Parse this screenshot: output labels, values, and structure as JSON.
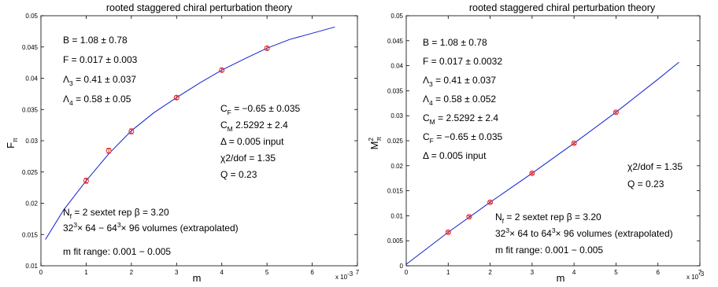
{
  "chart_data": [
    {
      "type": "scatter",
      "title": "rooted staggered chiral perturbation theory",
      "xlabel": "m",
      "ylabel": "F",
      "ylabel_sub": "π",
      "x_multiplier": "x 10",
      "x_multiplier_exp": "-3",
      "xlim": [
        0,
        7
      ],
      "ylim": [
        0.01,
        0.05
      ],
      "xticks": [
        "0",
        "1",
        "2",
        "3",
        "4",
        "5",
        "6",
        "7"
      ],
      "yticks": [
        "0.01",
        "0.015",
        "0.02",
        "0.025",
        "0.03",
        "0.035",
        "0.04",
        "0.045",
        "0.05"
      ],
      "points": {
        "x": [
          1,
          1.5,
          2,
          3,
          4,
          5
        ],
        "y": [
          0.0236,
          0.0284,
          0.0315,
          0.0369,
          0.0413,
          0.0448
        ],
        "err": [
          0.0004,
          0.0004,
          0.0004,
          0.0003,
          0.0003,
          0.0003
        ],
        "color": "#e0262c"
      },
      "fit_curve": {
        "color": "#1020d0",
        "x": [
          0.1,
          0.5,
          1,
          1.5,
          2,
          2.5,
          3,
          3.5,
          4,
          4.5,
          5,
          5.5,
          6,
          6.5
        ],
        "y": [
          0.0142,
          0.0189,
          0.0236,
          0.0279,
          0.0316,
          0.0345,
          0.0369,
          0.0392,
          0.0413,
          0.0431,
          0.0448,
          0.0462,
          0.0472,
          0.0482
        ]
      },
      "annotations": {
        "params": [
          {
            "sym": "B",
            "sub": "",
            "text": " =  1.08 ± 0.78"
          },
          {
            "sym": "F",
            "sub": "",
            "text": "   =  0.017 ± 0.003"
          },
          {
            "sym": "Λ",
            "sub": "3",
            "text": " =  0.41 ± 0.037"
          },
          {
            "sym": "Λ",
            "sub": "4",
            "text": " =  0.58 ± 0.05"
          }
        ],
        "right_params": [
          {
            "sym": "C",
            "sub": "F",
            "text": " =  −0.65 ± 0.035"
          },
          {
            "sym": "C",
            "sub": "M",
            "text": "  2.5292 ± 2.4"
          },
          {
            "sym": "Δ",
            "sub": "",
            "text": "     =  0.005  input"
          },
          {
            "sym": "χ",
            "sub": "",
            "text": "2/dof = 1.35"
          },
          {
            "sym": "Q",
            "sub": "",
            "text": " = 0.23"
          }
        ],
        "setup": [
          {
            "pre": "N",
            "sub": "f",
            "text": " = 2    sextet rep     β = 3.20"
          },
          {
            "pre": "32",
            "sup1": "3",
            "mid": "× 64  −  64",
            "sup2": "3",
            "post": "× 96  volumes (extrapolated)"
          },
          {
            "text": "m fit range:  0.001 − 0.005"
          }
        ]
      }
    },
    {
      "type": "scatter",
      "title": "rooted staggered chiral perturbation theory",
      "xlabel": "m",
      "ylabel": "M",
      "ylabel_sub": "π",
      "ylabel_sup": "2",
      "x_multiplier": "x 10",
      "x_multiplier_exp": "-3",
      "xlim": [
        0,
        7
      ],
      "ylim": [
        0,
        0.05
      ],
      "xticks": [
        "0",
        "1",
        "2",
        "3",
        "4",
        "5",
        "6",
        "7"
      ],
      "yticks": [
        "0",
        "0.005",
        "0.01",
        "0.015",
        "0.02",
        "0.025",
        "0.03",
        "0.035",
        "0.04",
        "0.045",
        "0.05"
      ],
      "points": {
        "x": [
          1,
          1.5,
          2,
          3,
          4,
          5
        ],
        "y": [
          0.0067,
          0.0098,
          0.0127,
          0.0185,
          0.0245,
          0.0307
        ],
        "err": [
          0.0002,
          0.0002,
          0.0002,
          0.0002,
          0.0002,
          0.0002
        ],
        "color": "#e0262c"
      },
      "fit_curve": {
        "color": "#1020d0",
        "x": [
          0,
          1,
          2,
          3,
          4,
          5,
          6,
          6.5
        ],
        "y": [
          0.0003,
          0.0067,
          0.0127,
          0.0185,
          0.0245,
          0.0307,
          0.0373,
          0.0407
        ]
      },
      "annotations": {
        "params": [
          {
            "sym": "B",
            "sub": "",
            "text": "  =  1.08 ± 0.78"
          },
          {
            "sym": "F",
            "sub": "",
            "text": "  =  0.017 ± 0.0032"
          },
          {
            "sym": "Λ",
            "sub": "3",
            "text": " =  0.41 ± 0.037"
          },
          {
            "sym": "Λ",
            "sub": "4",
            "text": " =  0.58 ± 0.052"
          },
          {
            "sym": "C",
            "sub": "M",
            "text": "  =  2.5292 ± 2.4"
          },
          {
            "sym": "C",
            "sub": "F",
            "text": "  =  −0.65 ± 0.035"
          },
          {
            "sym": "Δ",
            "sub": "",
            "text": "     =  0.005  input"
          }
        ],
        "right_params": [
          {
            "sym": "χ",
            "sub": "",
            "text": "2/dof = 1.35"
          },
          {
            "sym": "Q",
            "sub": "",
            "text": " = 0.23"
          }
        ],
        "setup": [
          {
            "pre": "N",
            "sub": "f",
            "text": " = 2    sextet rep     β = 3.20"
          },
          {
            "pre": "32",
            "sup1": "3",
            "mid": "× 64 to 64",
            "sup2": "3",
            "post": "× 96  volumes (extrapolated)"
          },
          {
            "text": "m fit range:  0.001 − 0.005"
          }
        ]
      }
    }
  ]
}
